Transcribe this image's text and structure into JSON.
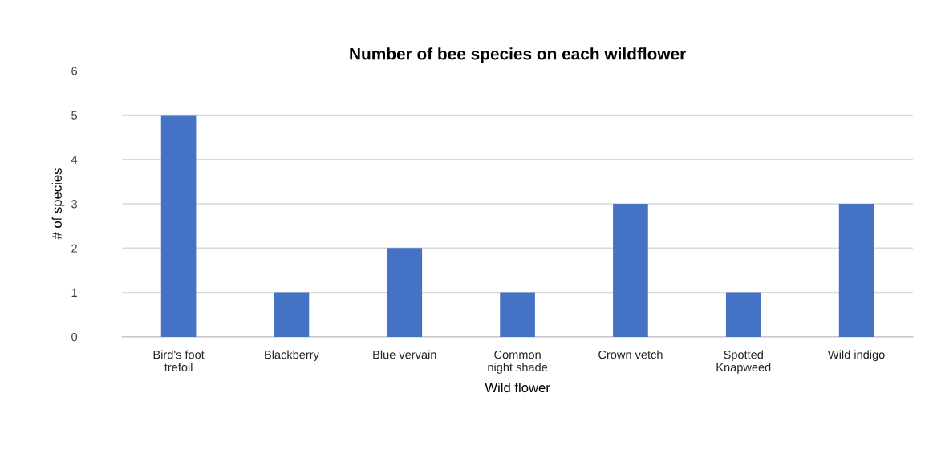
{
  "chart_data": {
    "type": "bar",
    "title": "Number of bee species on each wildflower",
    "xlabel": "Wild flower",
    "ylabel": "# of species",
    "categories": [
      "Bird's foot\ntrefoil",
      "Blackberry",
      "Blue vervain",
      "Common\nnight shade",
      "Crown vetch",
      "Spotted\nKnapweed",
      "Wild indigo"
    ],
    "values": [
      5,
      1,
      2,
      1,
      3,
      1,
      3
    ],
    "color": "#4472c4",
    "ylim": [
      0,
      6
    ],
    "yticks": [
      0,
      1,
      2,
      3,
      4,
      5,
      6
    ],
    "grid": "y",
    "legend": false
  }
}
